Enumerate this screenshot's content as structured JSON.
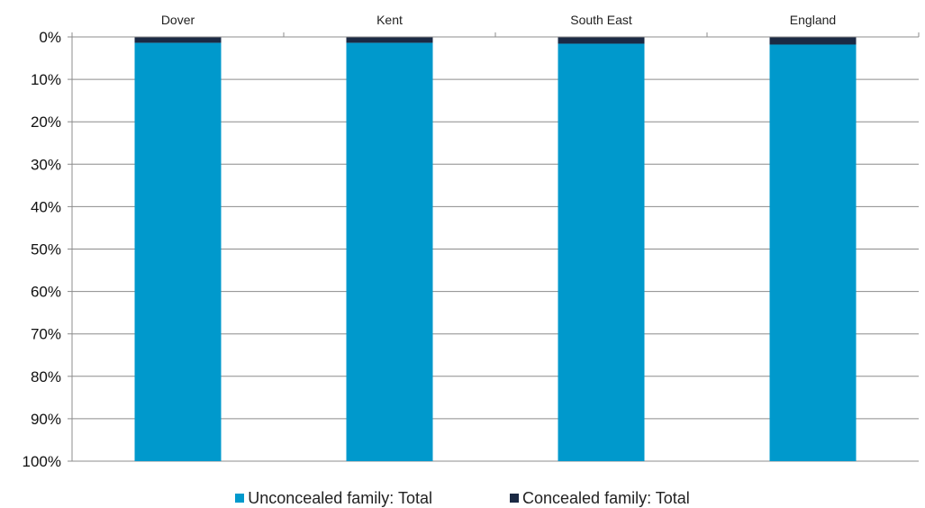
{
  "chart_data": {
    "type": "bar",
    "stacked": true,
    "orientation": "vertical",
    "y_inverted": true,
    "categories": [
      "Dover",
      "Kent",
      "South East",
      "England"
    ],
    "series": [
      {
        "name": "Unconcealed family: Total",
        "color": "#0099CC",
        "values": [
          98.6,
          98.6,
          98.4,
          98.2
        ]
      },
      {
        "name": "Concealed family: Total",
        "color": "#1B2A44",
        "values": [
          1.4,
          1.4,
          1.6,
          1.8
        ]
      }
    ],
    "y_ticks": [
      "0%",
      "10%",
      "20%",
      "30%",
      "40%",
      "50%",
      "60%",
      "70%",
      "80%",
      "90%",
      "100%"
    ],
    "ylim": [
      0,
      100
    ],
    "grid": true,
    "legend_position": "bottom",
    "title": "",
    "xlabel": "",
    "ylabel": ""
  }
}
